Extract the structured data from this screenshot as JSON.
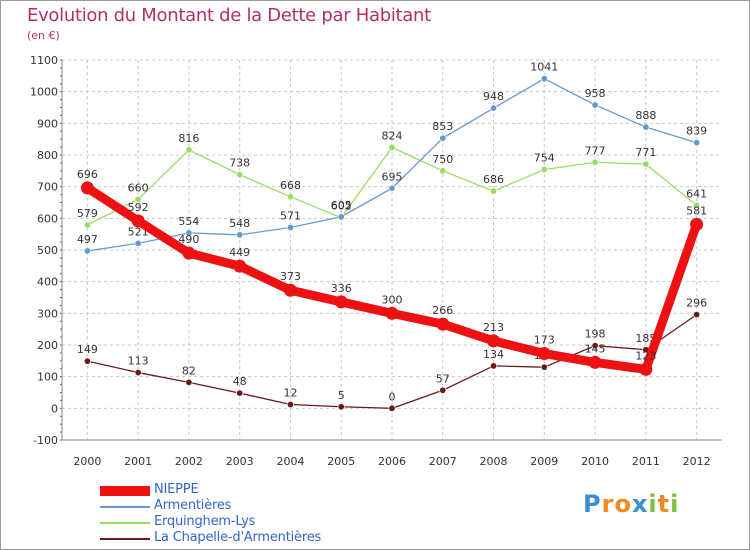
{
  "title": "Evolution du Montant de la Dette par Habitant",
  "subtitle": "(en €)",
  "chart_data": {
    "type": "line",
    "title": "Evolution du Montant de la Dette par Habitant",
    "ylabel": "(en €)",
    "xlabel": "",
    "ylim": [
      -100,
      1100
    ],
    "yticks": [
      -100,
      0,
      100,
      200,
      300,
      400,
      500,
      600,
      700,
      800,
      900,
      1000,
      1100
    ],
    "categories": [
      "2000",
      "2001",
      "2002",
      "2003",
      "2004",
      "2005",
      "2006",
      "2007",
      "2008",
      "2009",
      "2010",
      "2011",
      "2012"
    ],
    "series": [
      {
        "name": "La Chapelle-d'Armentières",
        "color": "#6b1a1a",
        "values": [
          149,
          113,
          82,
          48,
          12,
          5,
          0,
          57,
          134,
          130,
          198,
          185,
          296
        ]
      },
      {
        "name": "Erquinghem-Lys",
        "color": "#99dd66",
        "values": [
          579,
          660,
          816,
          738,
          668,
          602,
          824,
          750,
          686,
          754,
          777,
          771,
          641
        ]
      },
      {
        "name": "Armentières",
        "color": "#6699cc",
        "values": [
          497,
          521,
          554,
          548,
          571,
          605,
          695,
          853,
          948,
          1041,
          958,
          888,
          839
        ]
      },
      {
        "name": "NIEPPE",
        "color": "#ee1111",
        "values": [
          696,
          592,
          490,
          449,
          373,
          336,
          300,
          266,
          213,
          173,
          145,
          123,
          581
        ]
      }
    ],
    "legend": [
      "NIEPPE",
      "Armentières",
      "Erquinghem-Lys",
      "La Chapelle-d'Armentières"
    ]
  },
  "legend": {
    "nieppe": "NIEPPE",
    "armentieres": "Armentières",
    "erquinghem": "Erquinghem-Lys",
    "lachapelle": "La Chapelle-d'Armentières"
  },
  "logo": {
    "letters": [
      "P",
      "r",
      "o",
      "x",
      "i",
      "t",
      "i"
    ],
    "colors": [
      "#3a8fd0",
      "#f08a1c",
      "#f08a1c",
      "#3a8fd0",
      "#7cc242",
      "#f08a1c",
      "#7cc242"
    ]
  }
}
